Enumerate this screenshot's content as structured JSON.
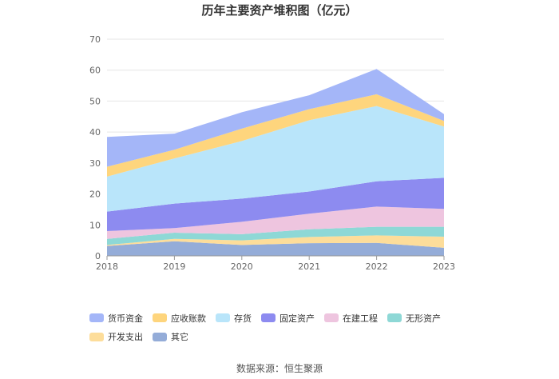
{
  "chart_data": {
    "type": "area",
    "stacked": true,
    "title": "历年主要资产堆积图（亿元）",
    "xlabel": "",
    "ylabel": "",
    "categories": [
      "2018",
      "2019",
      "2020",
      "2021",
      "2022",
      "2023"
    ],
    "ylim": [
      0,
      70
    ],
    "yticks": [
      0,
      10,
      20,
      30,
      40,
      50,
      60,
      70
    ],
    "grid": true,
    "legend_position": "bottom",
    "series": [
      {
        "name": "其它",
        "color": "#94acd8",
        "values": [
          3.2,
          4.7,
          3.5,
          4.1,
          4.2,
          2.6
        ]
      },
      {
        "name": "开发支出",
        "color": "#fddd9a",
        "values": [
          0.3,
          0.8,
          1.5,
          2.0,
          2.4,
          3.6
        ]
      },
      {
        "name": "无形资产",
        "color": "#8ed8d6",
        "values": [
          2.0,
          2.0,
          2.0,
          2.5,
          2.8,
          3.2
        ]
      },
      {
        "name": "在建工程",
        "color": "#eec5df",
        "values": [
          2.5,
          1.5,
          4.0,
          5.0,
          6.5,
          5.8
        ]
      },
      {
        "name": "固定资产",
        "color": "#8d8bf0",
        "values": [
          6.3,
          7.9,
          7.5,
          7.2,
          8.2,
          10.0
        ]
      },
      {
        "name": "存货",
        "color": "#b9e5fa",
        "values": [
          11.3,
          14.6,
          18.6,
          23.0,
          24.3,
          16.6
        ]
      },
      {
        "name": "应收账款",
        "color": "#fed57d",
        "values": [
          3.2,
          2.8,
          4.0,
          3.6,
          3.8,
          1.8
        ]
      },
      {
        "name": "货币资金",
        "color": "#a4b6f8",
        "values": [
          9.6,
          5.2,
          5.3,
          4.5,
          8.2,
          2.2
        ]
      }
    ]
  },
  "legend_order": [
    "货币资金",
    "应收账款",
    "存货",
    "固定资产",
    "在建工程",
    "无形资产",
    "开发支出",
    "其它"
  ],
  "source": "数据来源：恒生聚源"
}
